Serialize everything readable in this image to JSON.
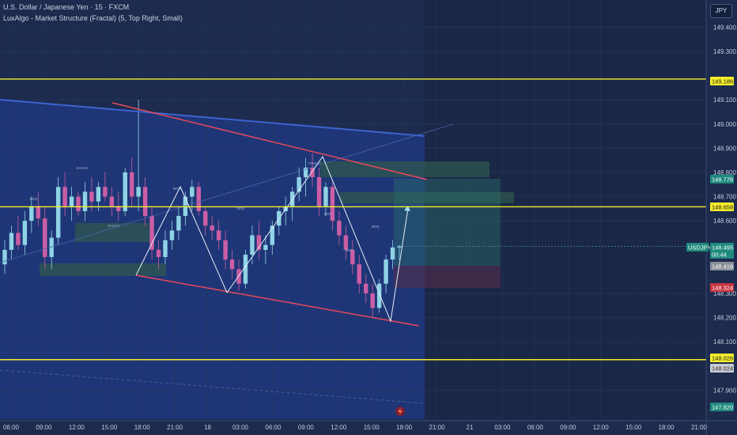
{
  "header": {
    "symbol_line": "U.S. Dollar / Japanese Yen · 15 · FXCM",
    "indicator_line": "LuxAlgo - Market Structure (Fractal) (5, Top Right, Small)"
  },
  "currency_button": "JPY",
  "colors": {
    "background": "#1c2b4e",
    "key_level": "#f5ee2c",
    "trendline_red": "#e8495b",
    "trendline_blue": "#3d63d1",
    "up_candle": "#8fd3e6",
    "down_candle": "#cb5ea5",
    "zone_green": "#2f5a4c"
  },
  "chart_data": {
    "type": "candlestick",
    "y_axis": {
      "ticks": [
        "149.400",
        "149.300",
        "149.100",
        "149.000",
        "148.900",
        "148.800",
        "148.700",
        "148.600",
        "148.300",
        "148.200",
        "148.100",
        "147.900"
      ],
      "ylim": [
        147.78,
        149.48
      ]
    },
    "x_axis": {
      "ticks": [
        "06:00",
        "09:00",
        "12:00",
        "15:00",
        "18:00",
        "21:00",
        "18",
        "03:00",
        "06:00",
        "09:00",
        "12:00",
        "15:00",
        "18:00",
        "21:00",
        "21",
        "03:00",
        "06:00",
        "09:00",
        "12:00",
        "15:00",
        "18:00",
        "21:00"
      ]
    },
    "key_levels": [
      149.186,
      148.658,
      148.026
    ],
    "price_labels": [
      {
        "text": "149.186",
        "style": "yellow"
      },
      {
        "text": "148.776",
        "style": "teal"
      },
      {
        "text": "148.658",
        "style": "yellow"
      },
      {
        "text": "USDJPY",
        "style": "teal"
      },
      {
        "text": "148.495",
        "style": "teal"
      },
      {
        "text": "00:44",
        "style": "teal"
      },
      {
        "text": "148.416",
        "style": "grey"
      },
      {
        "text": "148.324",
        "style": "red"
      },
      {
        "text": "148.026",
        "style": "yellow"
      },
      {
        "text": "148.024",
        "style": "lightgrey"
      },
      {
        "text": "147.820",
        "style": "teal"
      }
    ],
    "series": [
      {
        "values": [
          [
            148.42,
            148.52,
            148.38,
            148.48
          ],
          [
            148.48,
            148.58,
            148.44,
            148.55
          ],
          [
            148.55,
            148.62,
            148.48,
            148.5
          ],
          [
            148.5,
            148.64,
            148.46,
            148.6
          ],
          [
            148.6,
            148.7,
            148.55,
            148.66
          ],
          [
            148.66,
            148.72,
            148.58,
            148.61
          ],
          [
            148.61,
            148.66,
            148.4,
            148.45
          ],
          [
            148.45,
            148.56,
            148.4,
            148.53
          ],
          [
            148.53,
            148.78,
            148.5,
            148.74
          ],
          [
            148.74,
            148.8,
            148.62,
            148.66
          ],
          [
            148.66,
            148.74,
            148.6,
            148.7
          ],
          [
            148.7,
            148.72,
            148.62,
            148.64
          ],
          [
            148.64,
            148.76,
            148.6,
            148.72
          ],
          [
            148.72,
            148.78,
            148.64,
            148.68
          ],
          [
            148.68,
            148.76,
            148.64,
            148.74
          ],
          [
            148.74,
            148.8,
            148.68,
            148.7
          ],
          [
            148.7,
            148.74,
            148.62,
            148.66
          ],
          [
            148.66,
            148.72,
            148.6,
            148.64
          ],
          [
            148.64,
            148.82,
            148.62,
            148.8
          ],
          [
            148.8,
            148.86,
            148.66,
            148.7
          ],
          [
            148.7,
            149.1,
            148.64,
            148.74
          ],
          [
            148.74,
            148.78,
            148.58,
            148.62
          ],
          [
            148.62,
            148.66,
            148.44,
            148.48
          ],
          [
            148.48,
            148.52,
            148.4,
            148.45
          ],
          [
            148.45,
            148.56,
            148.42,
            148.52
          ],
          [
            148.52,
            148.6,
            148.48,
            148.56
          ],
          [
            148.56,
            148.66,
            148.52,
            148.62
          ],
          [
            148.62,
            148.72,
            148.58,
            148.7
          ],
          [
            148.7,
            148.77,
            148.64,
            148.74
          ],
          [
            148.74,
            148.76,
            148.62,
            148.64
          ],
          [
            148.64,
            148.66,
            148.54,
            148.58
          ],
          [
            148.58,
            148.62,
            148.52,
            148.56
          ],
          [
            148.56,
            148.6,
            148.48,
            148.52
          ],
          [
            148.52,
            148.56,
            148.4,
            148.44
          ],
          [
            148.44,
            148.48,
            148.36,
            148.4
          ],
          [
            148.4,
            148.44,
            148.31,
            148.34
          ],
          [
            148.34,
            148.48,
            148.32,
            148.46
          ],
          [
            148.46,
            148.58,
            148.42,
            148.54
          ],
          [
            148.54,
            148.6,
            148.44,
            148.48
          ],
          [
            148.48,
            148.54,
            148.42,
            148.5
          ],
          [
            148.5,
            148.6,
            148.46,
            148.58
          ],
          [
            148.58,
            148.66,
            148.54,
            148.64
          ],
          [
            148.64,
            148.7,
            148.58,
            148.66
          ],
          [
            148.66,
            148.74,
            148.6,
            148.72
          ],
          [
            148.72,
            148.82,
            148.68,
            148.78
          ],
          [
            148.78,
            148.86,
            148.7,
            148.82
          ],
          [
            148.82,
            148.88,
            148.74,
            148.78
          ],
          [
            148.78,
            148.82,
            148.62,
            148.66
          ],
          [
            148.66,
            148.76,
            148.62,
            148.74
          ],
          [
            148.74,
            148.76,
            148.56,
            148.6
          ],
          [
            148.6,
            148.64,
            148.5,
            148.54
          ],
          [
            148.54,
            148.58,
            148.44,
            148.48
          ],
          [
            148.48,
            148.52,
            148.38,
            148.42
          ],
          [
            148.42,
            148.46,
            148.3,
            148.34
          ],
          [
            148.34,
            148.38,
            148.26,
            148.3
          ],
          [
            148.3,
            148.34,
            148.2,
            148.24
          ],
          [
            148.24,
            148.36,
            148.22,
            148.34
          ],
          [
            148.34,
            148.46,
            148.3,
            148.44
          ],
          [
            148.44,
            148.52,
            148.4,
            148.49
          ],
          [
            148.49,
            148.5,
            148.44,
            148.495
          ]
        ]
      }
    ],
    "annotations": [
      "BOS",
      "CHoCH",
      "CHoCH",
      "BOS",
      "BOS",
      "CHoCH",
      "BOS",
      "BOS",
      "BOS"
    ]
  }
}
